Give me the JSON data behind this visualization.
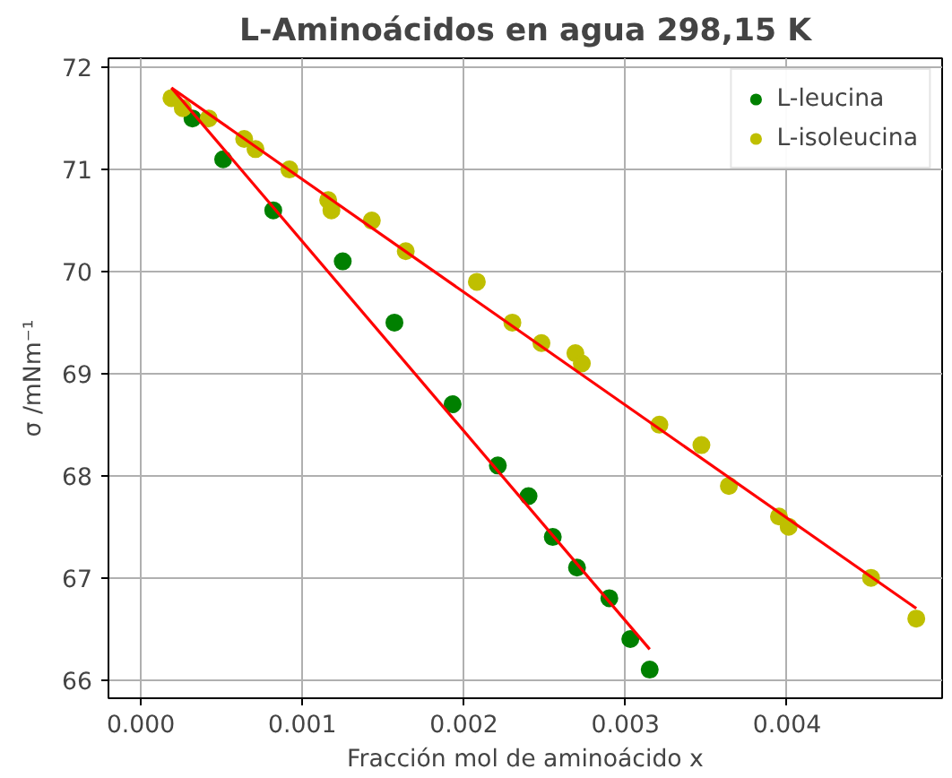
{
  "chart_data": {
    "type": "scatter",
    "title": "L-Aminoácidos en agua 298,15 K",
    "xlabel": "Fracción mol de aminoácido x",
    "ylabel": "σ /mNm⁻¹",
    "xlim": [
      -0.0002,
      0.00496
    ],
    "ylim": [
      65.82,
      72.09
    ],
    "xticks": [
      {
        "value": 0,
        "label": "0.000"
      },
      {
        "value": 0.001,
        "label": "0.001"
      },
      {
        "value": 0.002,
        "label": "0.002"
      },
      {
        "value": 0.003,
        "label": "0.003"
      },
      {
        "value": 0.004,
        "label": "0.004"
      }
    ],
    "yticks": [
      66,
      67,
      68,
      69,
      70,
      71,
      72
    ],
    "grid": true,
    "legend": "top right",
    "series": [
      {
        "name": "L-leucina",
        "color": "#008000",
        "marker": "circle",
        "x": [
          0.00032,
          0.00051,
          0.00082,
          0.00125,
          0.00157,
          0.00193,
          0.00221,
          0.0024,
          0.00255,
          0.0027,
          0.0029,
          0.00303,
          0.00315
        ],
        "values": [
          71.5,
          71.1,
          70.6,
          70.1,
          69.5,
          68.7,
          68.1,
          67.8,
          67.4,
          67.1,
          66.8,
          66.4,
          66.1
        ]
      },
      {
        "name": "L-isoleucina",
        "color": "#bfbf00",
        "marker": "circle",
        "x": [
          0.00019,
          0.00026,
          0.00042,
          0.00064,
          0.00071,
          0.00092,
          0.00116,
          0.00118,
          0.00143,
          0.00164,
          0.00208,
          0.0023,
          0.00248,
          0.00269,
          0.00273,
          0.00321,
          0.00347,
          0.00364,
          0.00395,
          0.00401,
          0.00452,
          0.0048
        ],
        "values": [
          71.7,
          71.6,
          71.5,
          71.3,
          71.2,
          71.0,
          70.7,
          70.6,
          70.5,
          70.2,
          69.9,
          69.5,
          69.3,
          69.2,
          69.1,
          68.5,
          68.3,
          67.9,
          67.6,
          67.5,
          67.0,
          66.6
        ]
      },
      {
        "type": "line",
        "marker": "none",
        "color": "#ff0000",
        "x": [
          0.00019,
          0.00315
        ],
        "values": [
          71.8,
          66.3
        ]
      },
      {
        "type": "line",
        "marker": "none",
        "color": "#ff0000",
        "x": [
          0.00019,
          0.0048
        ],
        "values": [
          71.8,
          66.7
        ]
      }
    ]
  }
}
